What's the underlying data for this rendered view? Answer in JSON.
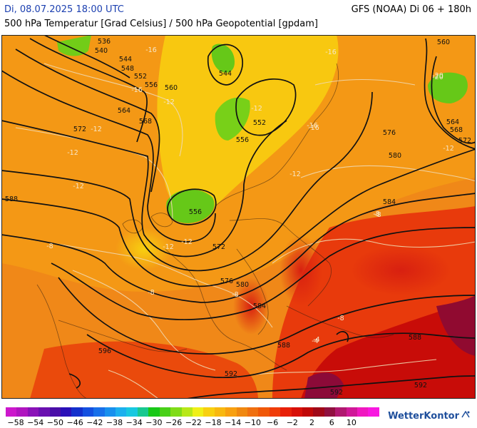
{
  "header": {
    "date": "Di, 08.07.2025 18:00 UTC",
    "model": "GFS (NOAA) Di 06 + 180h",
    "subtitle": "500 hPa Temperatur [Grad Celsius] / 500 hPa Geopotential [gpdam]"
  },
  "legend": {
    "tick_labels": [
      "−58",
      "−54",
      "−50",
      "−46",
      "−42",
      "−38",
      "−34",
      "−30",
      "−26",
      "−22",
      "−18",
      "−14",
      "−10",
      "−6",
      "−2",
      "2",
      "6",
      "10"
    ],
    "colors": [
      "#cc18cc",
      "#b015c0",
      "#8a12b8",
      "#6a10b0",
      "#4a0ea8",
      "#2a10b8",
      "#1430cc",
      "#1450e0",
      "#1870ea",
      "#1890ee",
      "#1cb0ee",
      "#18c8e0",
      "#18c890",
      "#18c818",
      "#48d018",
      "#80dc18",
      "#b8e818",
      "#f0f018",
      "#f8d010",
      "#f8b810",
      "#f8a010",
      "#f08810",
      "#f07010",
      "#f05808",
      "#f03c08",
      "#e82008",
      "#d81008",
      "#c00808",
      "#a00818",
      "#901040",
      "#b01870",
      "#d01898",
      "#f018c0",
      "#f818e0"
    ]
  },
  "map": {
    "contour_labels": [
      "536",
      "540",
      "544",
      "548",
      "552",
      "556",
      "560",
      "564",
      "568",
      "572",
      "576",
      "580",
      "584",
      "588",
      "592",
      "544",
      "552",
      "556",
      "556",
      "560",
      "564",
      "568",
      "572",
      "572",
      "576",
      "580",
      "584",
      "588",
      "592",
      "588",
      "592",
      "596"
    ],
    "temperature_labels": [
      "-16",
      "-16",
      "-12",
      "-12",
      "-12",
      "-12",
      "-20",
      "-12",
      "-16",
      "-12",
      "-8",
      "-8",
      "-8",
      "-8",
      "-8",
      "-4",
      "-12",
      "-12",
      "-12",
      "-16",
      "-16",
      "-20",
      "-8",
      "-4"
    ],
    "colors": {
      "warm": "#f07c10",
      "cold": "#60c818",
      "hot": "#d82010",
      "very_hot": "#a00830",
      "cool": "#f8c010"
    }
  },
  "brand": {
    "name": "WetterKontor"
  }
}
